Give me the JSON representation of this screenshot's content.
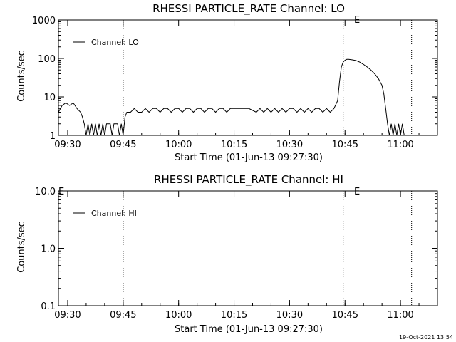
{
  "chart_data": [
    {
      "type": "line",
      "title": "RHESSI PARTICLE_RATE Channel: LO",
      "xlabel": "Start Time (01-Jun-13 09:27:30)",
      "ylabel": "Counts/sec",
      "y_scale": "log",
      "ylim": [
        1,
        1000
      ],
      "y_ticks": [
        "1",
        "10",
        "100",
        "1000"
      ],
      "x_ticks": [
        "09:30",
        "09:45",
        "10:00",
        "10:15",
        "10:30",
        "10:45",
        "11:00"
      ],
      "xlim": [
        "09:27:30",
        "11:10:00"
      ],
      "series": [
        {
          "name": "Channel: LO",
          "x": [
            "09:27:30",
            "09:28:30",
            "09:29:30",
            "09:30:30",
            "09:31:30",
            "09:32:30",
            "09:33:30",
            "09:34:00",
            "09:34:30",
            "09:35:00",
            "09:35:30",
            "09:36:00",
            "09:36:30",
            "09:37:00",
            "09:37:30",
            "09:38:00",
            "09:38:30",
            "09:39:00",
            "09:39:30",
            "09:40:00",
            "09:40:30",
            "09:41:00",
            "09:41:30",
            "09:42:00",
            "09:42:30",
            "09:43:00",
            "09:43:30",
            "09:44:00",
            "09:44:30",
            "09:45:00",
            "09:45:30",
            "09:46:00",
            "09:47:00",
            "09:48:00",
            "09:49:00",
            "09:50:00",
            "09:51:00",
            "09:52:00",
            "09:53:00",
            "09:54:00",
            "09:55:00",
            "09:56:00",
            "09:57:00",
            "09:58:00",
            "09:59:00",
            "10:00:00",
            "10:01:00",
            "10:02:00",
            "10:03:00",
            "10:04:00",
            "10:05:00",
            "10:06:00",
            "10:07:00",
            "10:08:00",
            "10:09:00",
            "10:10:00",
            "10:11:00",
            "10:12:00",
            "10:13:00",
            "10:14:00",
            "10:15:00",
            "10:17:00",
            "10:19:00",
            "10:21:00",
            "10:22:00",
            "10:23:00",
            "10:24:00",
            "10:25:00",
            "10:26:00",
            "10:27:00",
            "10:28:00",
            "10:29:00",
            "10:30:00",
            "10:31:00",
            "10:32:00",
            "10:33:00",
            "10:34:00",
            "10:35:00",
            "10:36:00",
            "10:37:00",
            "10:38:00",
            "10:39:00",
            "10:40:00",
            "10:41:00",
            "10:42:00",
            "10:43:00",
            "10:43:30",
            "10:44:00",
            "10:44:30",
            "10:45:00",
            "10:45:30",
            "10:46:00",
            "10:47:00",
            "10:48:00",
            "10:49:00",
            "10:50:00",
            "10:51:00",
            "10:52:00",
            "10:53:00",
            "10:54:00",
            "10:55:00",
            "10:55:30",
            "10:56:00",
            "10:56:30",
            "10:57:00",
            "10:57:30",
            "10:58:00",
            "10:58:30",
            "10:59:00",
            "10:59:30",
            "11:00:00",
            "11:00:30",
            "11:01:00"
          ],
          "y": [
            4,
            6,
            7,
            6,
            7,
            5,
            4,
            3,
            2,
            1,
            2,
            1,
            2,
            1,
            2,
            1,
            2,
            1,
            2,
            1,
            2,
            2,
            2,
            1,
            2,
            2,
            2,
            1,
            2,
            1,
            3,
            4,
            4,
            5,
            4,
            4,
            5,
            4,
            5,
            5,
            4,
            5,
            5,
            4,
            5,
            5,
            4,
            5,
            5,
            4,
            5,
            5,
            4,
            5,
            5,
            4,
            5,
            5,
            4,
            5,
            5,
            5,
            5,
            4,
            5,
            4,
            5,
            4,
            5,
            4,
            5,
            4,
            5,
            5,
            4,
            5,
            4,
            5,
            4,
            5,
            5,
            4,
            5,
            4,
            5,
            8,
            25,
            60,
            80,
            90,
            95,
            95,
            92,
            88,
            80,
            70,
            60,
            50,
            40,
            30,
            20,
            12,
            5,
            2,
            1,
            2,
            1,
            2,
            1,
            2,
            1,
            2,
            1
          ]
        }
      ],
      "annotations": [
        "E"
      ]
    },
    {
      "type": "line",
      "title": "RHESSI PARTICLE_RATE Channel: HI",
      "xlabel": "Start Time (01-Jun-13 09:27:30)",
      "ylabel": "Counts/sec",
      "y_scale": "log",
      "ylim": [
        0.1,
        10
      ],
      "y_ticks": [
        "0.1",
        "1.0",
        "10.0"
      ],
      "x_ticks": [
        "09:30",
        "09:45",
        "10:00",
        "10:15",
        "10:30",
        "10:45",
        "11:00"
      ],
      "xlim": [
        "09:27:30",
        "11:10:00"
      ],
      "series": [
        {
          "name": "Channel: HI",
          "x": [],
          "y": []
        }
      ],
      "annotations": [
        "E",
        "E"
      ]
    }
  ],
  "markers": {
    "dotted_times": [
      "09:45:00",
      "10:44:30",
      "11:03:00"
    ]
  },
  "timestamp": "19-Oct-2021 13:54",
  "colors": {
    "line": "#000000",
    "background": "#ffffff"
  }
}
